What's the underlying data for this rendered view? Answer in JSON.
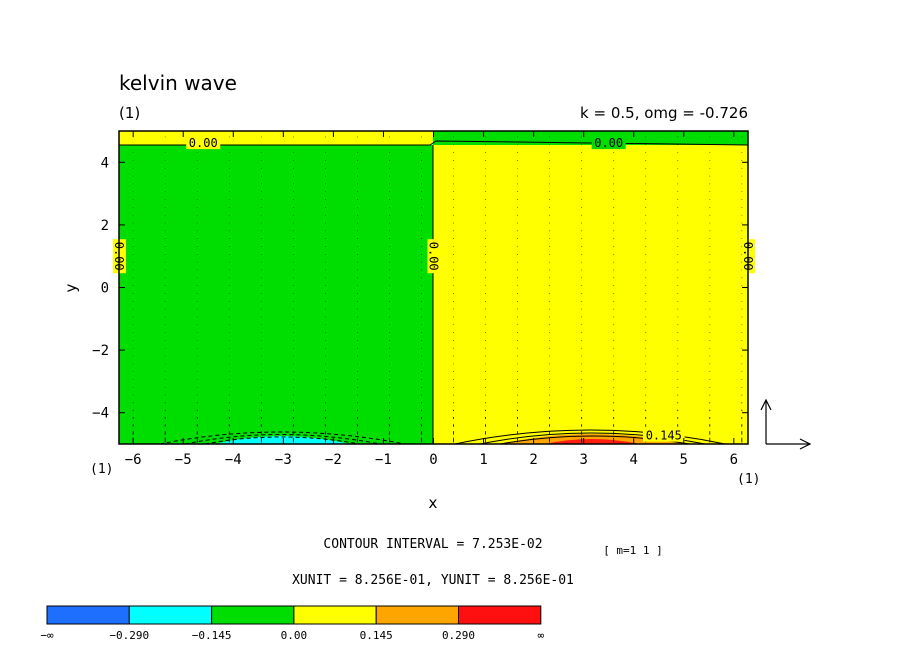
{
  "chart_data": {
    "type": "contour",
    "title": "kelvin wave",
    "panel_label": "(1)",
    "parameters": "k = 0.5, omg = -0.726",
    "xlabel": "x",
    "ylabel": "y",
    "x_unit_marks": [
      "(1)",
      "(1)"
    ],
    "xlim": [
      -6.283,
      6.283
    ],
    "ylim": [
      -5,
      5
    ],
    "xticks": [
      -6,
      -5,
      -4,
      -3,
      -2,
      -1,
      0,
      1,
      2,
      3,
      4,
      5,
      6
    ],
    "yticks": [
      -4,
      -2,
      0,
      2,
      4
    ],
    "ytick_labels": [
      "−4",
      "−2",
      "0",
      "2",
      "4"
    ],
    "xtick_labels": [
      "−6",
      "−5",
      "−4",
      "−3",
      "−2",
      "−1",
      "0",
      "1",
      "2",
      "3",
      "4",
      "5",
      "6"
    ],
    "contour_labels": [
      {
        "text": "0.00",
        "x": -4.6,
        "y": 4.55,
        "rotate": false
      },
      {
        "text": "0.00",
        "x": 3.5,
        "y": 4.55,
        "rotate": false
      },
      {
        "text": "0.00",
        "x": -6.283,
        "y": 1.0,
        "rotate": true
      },
      {
        "text": "0.00",
        "x": 0.0,
        "y": 1.0,
        "rotate": true
      },
      {
        "text": "0.00",
        "x": 6.283,
        "y": 1.0,
        "rotate": true
      },
      {
        "text": "0.145",
        "x": 4.6,
        "y": -4.8,
        "rotate": false
      }
    ],
    "contour_interval": "CONTOUR INTERVAL = 7.253E-02",
    "mode": "[ m=1 1 ]",
    "units": "XUNIT = 8.256E-01, YUNIT = 8.256E-01",
    "colorbar": {
      "levels": [
        "−∞",
        "−0.290",
        "−0.145",
        "0.00",
        "0.145",
        "0.290",
        "∞"
      ],
      "colors": [
        "#1f6fff",
        "#00ffff",
        "#00dd00",
        "#ffff00",
        "#ffa500",
        "#ff1010"
      ]
    },
    "colors": {
      "negative_region": "#00dd00",
      "positive_region": "#ffff00",
      "strong_negative": "#00ffff",
      "strong_positive": "#ffa500",
      "very_strong_positive": "#ff1010"
    }
  }
}
